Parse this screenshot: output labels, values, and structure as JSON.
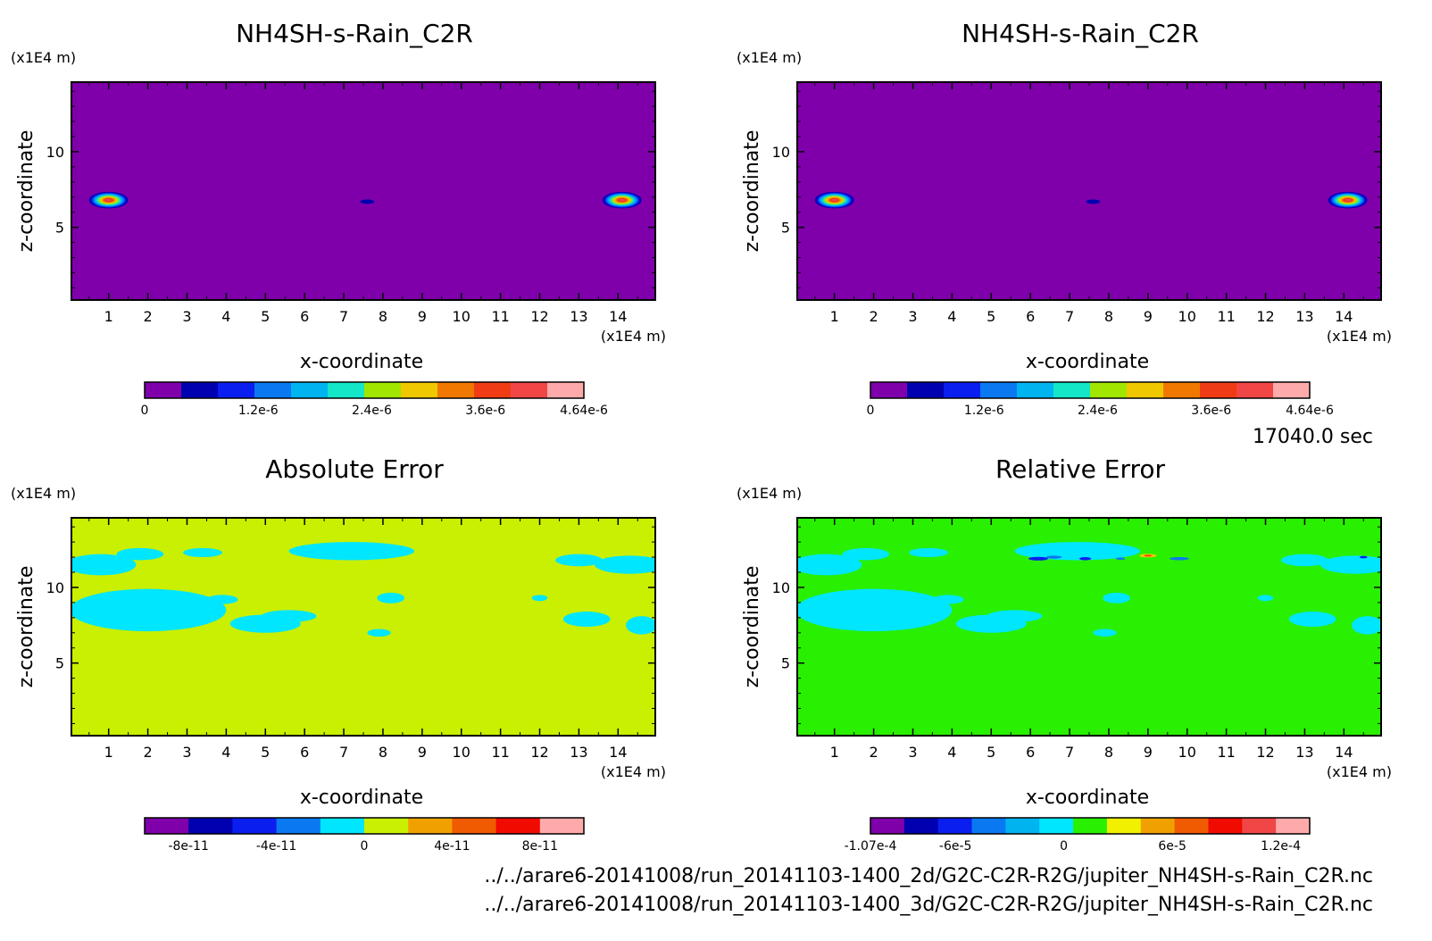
{
  "chart_data": [
    {
      "type": "heatmap",
      "title": "NH4SH-s-Rain_C2R",
      "xlabel": "x-coordinate",
      "ylabel": "z-coordinate",
      "x_unit": "(x1E4 m)",
      "y_unit": "(x1E4 m)",
      "xlim": [
        0.05,
        14.95
      ],
      "ylim": [
        0.2,
        14.6
      ],
      "x_ticks": [
        1,
        2,
        3,
        4,
        5,
        6,
        7,
        8,
        9,
        10,
        11,
        12,
        13,
        14
      ],
      "y_ticks": [
        5,
        10
      ],
      "background_color": "#7f00aa",
      "blobs": [
        {
          "x": 1.0,
          "z": 6.8,
          "rx": 0.5,
          "rz": 0.55,
          "level": 0.95
        },
        {
          "x": 14.1,
          "z": 6.8,
          "rx": 0.5,
          "rz": 0.55,
          "level": 0.95
        },
        {
          "x": 7.6,
          "z": 6.7,
          "rx": 0.18,
          "rz": 0.15,
          "level": 0.12
        }
      ],
      "colorbar": {
        "colors": [
          "#7f00aa",
          "#0000b0",
          "#0a1ef0",
          "#0a78f0",
          "#00b4f0",
          "#14e6c8",
          "#a0e600",
          "#f0c800",
          "#f07800",
          "#f03c14",
          "#f04646",
          "#ffaaaa"
        ],
        "tick_labels": [
          "0",
          "1.2e-6",
          "2.4e-6",
          "3.6e-6",
          "4.64e-6"
        ],
        "tick_values": [
          0,
          1.2e-06,
          2.4e-06,
          3.6e-06,
          4.64e-06
        ],
        "range": [
          0,
          4.64e-06
        ]
      }
    },
    {
      "type": "heatmap",
      "title": "NH4SH-s-Rain_C2R",
      "xlabel": "x-coordinate",
      "ylabel": "z-coordinate",
      "x_unit": "(x1E4 m)",
      "y_unit": "(x1E4 m)",
      "xlim": [
        0.05,
        14.95
      ],
      "ylim": [
        0.2,
        14.6
      ],
      "x_ticks": [
        1,
        2,
        3,
        4,
        5,
        6,
        7,
        8,
        9,
        10,
        11,
        12,
        13,
        14
      ],
      "y_ticks": [
        5,
        10
      ],
      "background_color": "#7f00aa",
      "blobs": [
        {
          "x": 1.0,
          "z": 6.8,
          "rx": 0.5,
          "rz": 0.55,
          "level": 0.95
        },
        {
          "x": 14.1,
          "z": 6.8,
          "rx": 0.5,
          "rz": 0.55,
          "level": 0.95
        },
        {
          "x": 7.6,
          "z": 6.7,
          "rx": 0.18,
          "rz": 0.15,
          "level": 0.12
        }
      ],
      "colorbar": {
        "colors": [
          "#7f00aa",
          "#0000b0",
          "#0a1ef0",
          "#0a78f0",
          "#00b4f0",
          "#14e6c8",
          "#a0e600",
          "#f0c800",
          "#f07800",
          "#f03c14",
          "#f04646",
          "#ffaaaa"
        ],
        "tick_labels": [
          "0",
          "1.2e-6",
          "2.4e-6",
          "3.6e-6",
          "4.64e-6"
        ],
        "tick_values": [
          0,
          1.2e-06,
          2.4e-06,
          3.6e-06,
          4.64e-06
        ],
        "range": [
          0,
          4.64e-06
        ]
      }
    },
    {
      "type": "heatmap",
      "title": "Absolute Error",
      "xlabel": "x-coordinate",
      "ylabel": "z-coordinate",
      "x_unit": "(x1E4 m)",
      "y_unit": "(x1E4 m)",
      "xlim": [
        0.05,
        14.95
      ],
      "ylim": [
        0.2,
        14.6
      ],
      "x_ticks": [
        1,
        2,
        3,
        4,
        5,
        6,
        7,
        8,
        9,
        10,
        11,
        12,
        13,
        14
      ],
      "y_ticks": [
        5,
        10
      ],
      "background_color": "#c8f000",
      "patch_color": "#00e6ff",
      "patches": [
        {
          "x": 2.0,
          "z": 8.5,
          "rx": 2.0,
          "rz": 1.4
        },
        {
          "x": 0.8,
          "z": 11.5,
          "rx": 0.9,
          "rz": 0.7
        },
        {
          "x": 1.8,
          "z": 12.2,
          "rx": 0.6,
          "rz": 0.4
        },
        {
          "x": 3.4,
          "z": 12.3,
          "rx": 0.5,
          "rz": 0.3
        },
        {
          "x": 3.9,
          "z": 9.2,
          "rx": 0.4,
          "rz": 0.3
        },
        {
          "x": 5.0,
          "z": 7.6,
          "rx": 0.9,
          "rz": 0.6
        },
        {
          "x": 5.6,
          "z": 8.1,
          "rx": 0.7,
          "rz": 0.4
        },
        {
          "x": 7.2,
          "z": 12.4,
          "rx": 1.6,
          "rz": 0.6
        },
        {
          "x": 8.2,
          "z": 9.3,
          "rx": 0.35,
          "rz": 0.35
        },
        {
          "x": 7.9,
          "z": 7.0,
          "rx": 0.3,
          "rz": 0.25
        },
        {
          "x": 12.0,
          "z": 9.3,
          "rx": 0.2,
          "rz": 0.2
        },
        {
          "x": 13.2,
          "z": 7.9,
          "rx": 0.6,
          "rz": 0.5
        },
        {
          "x": 14.3,
          "z": 11.5,
          "rx": 0.9,
          "rz": 0.6
        },
        {
          "x": 13.0,
          "z": 11.8,
          "rx": 0.6,
          "rz": 0.4
        },
        {
          "x": 14.6,
          "z": 7.5,
          "rx": 0.4,
          "rz": 0.6
        }
      ],
      "colorbar": {
        "colors": [
          "#7f00aa",
          "#0000b0",
          "#0a1ef0",
          "#0a78f0",
          "#00e6ff",
          "#c8f000",
          "#f0a000",
          "#f05a00",
          "#f00a00",
          "#ffaaaa"
        ],
        "tick_labels": [
          "-8e-11",
          "-4e-11",
          "0",
          "4e-11",
          "8e-11"
        ],
        "tick_values": [
          -8e-11,
          -4e-11,
          0,
          4e-11,
          8e-11
        ],
        "range": [
          -1e-10,
          1e-10
        ]
      }
    },
    {
      "type": "heatmap",
      "title": "Relative Error",
      "xlabel": "x-coordinate",
      "ylabel": "z-coordinate",
      "x_unit": "(x1E4 m)",
      "y_unit": "(x1E4 m)",
      "xlim": [
        0.05,
        14.95
      ],
      "ylim": [
        0.2,
        14.6
      ],
      "x_ticks": [
        1,
        2,
        3,
        4,
        5,
        6,
        7,
        8,
        9,
        10,
        11,
        12,
        13,
        14
      ],
      "y_ticks": [
        5,
        10
      ],
      "background_color": "#28f000",
      "patch_color": "#00e6ff",
      "patches": [
        {
          "x": 2.0,
          "z": 8.5,
          "rx": 2.0,
          "rz": 1.4
        },
        {
          "x": 0.8,
          "z": 11.5,
          "rx": 0.9,
          "rz": 0.7
        },
        {
          "x": 1.8,
          "z": 12.2,
          "rx": 0.6,
          "rz": 0.4
        },
        {
          "x": 3.4,
          "z": 12.3,
          "rx": 0.5,
          "rz": 0.3
        },
        {
          "x": 3.9,
          "z": 9.2,
          "rx": 0.4,
          "rz": 0.3
        },
        {
          "x": 5.0,
          "z": 7.6,
          "rx": 0.9,
          "rz": 0.6
        },
        {
          "x": 5.6,
          "z": 8.1,
          "rx": 0.7,
          "rz": 0.4
        },
        {
          "x": 7.2,
          "z": 12.4,
          "rx": 1.6,
          "rz": 0.6
        },
        {
          "x": 8.2,
          "z": 9.3,
          "rx": 0.35,
          "rz": 0.35
        },
        {
          "x": 7.9,
          "z": 7.0,
          "rx": 0.3,
          "rz": 0.25
        },
        {
          "x": 12.0,
          "z": 9.3,
          "rx": 0.2,
          "rz": 0.2
        },
        {
          "x": 13.2,
          "z": 7.9,
          "rx": 0.6,
          "rz": 0.5
        },
        {
          "x": 14.3,
          "z": 11.5,
          "rx": 0.9,
          "rz": 0.6
        },
        {
          "x": 13.0,
          "z": 11.8,
          "rx": 0.6,
          "rz": 0.4
        },
        {
          "x": 14.6,
          "z": 7.5,
          "rx": 0.4,
          "rz": 0.6
        }
      ],
      "extremes": [
        {
          "x": 6.2,
          "z": 11.9,
          "rx": 0.25,
          "rz": 0.12,
          "color": "#0a1ef0"
        },
        {
          "x": 6.6,
          "z": 12.0,
          "rx": 0.2,
          "rz": 0.1,
          "color": "#0a78f0"
        },
        {
          "x": 7.4,
          "z": 11.9,
          "rx": 0.15,
          "rz": 0.1,
          "color": "#0a1ef0"
        },
        {
          "x": 9.0,
          "z": 12.1,
          "rx": 0.22,
          "rz": 0.12,
          "color": "#f0c800"
        },
        {
          "x": 9.0,
          "z": 12.1,
          "rx": 0.1,
          "rz": 0.06,
          "color": "#f03c14"
        },
        {
          "x": 8.3,
          "z": 11.9,
          "rx": 0.12,
          "rz": 0.08,
          "color": "#0a78f0"
        },
        {
          "x": 9.8,
          "z": 11.9,
          "rx": 0.25,
          "rz": 0.1,
          "color": "#0a78f0"
        },
        {
          "x": 14.5,
          "z": 12.0,
          "rx": 0.1,
          "rz": 0.08,
          "color": "#0a1ef0"
        }
      ],
      "colorbar": {
        "colors": [
          "#7f00aa",
          "#0000b0",
          "#0a1ef0",
          "#0a78f0",
          "#00b4f0",
          "#00e6ff",
          "#28f000",
          "#f0f000",
          "#f0a000",
          "#f05a00",
          "#f00a00",
          "#f04646",
          "#ffaaaa"
        ],
        "tick_labels": [
          "-1.07e-4",
          "-6e-5",
          "0",
          "6e-5",
          "1.2e-4"
        ],
        "tick_values": [
          -0.000107,
          -6e-05,
          0,
          6e-05,
          0.00012
        ],
        "range": [
          -0.000107,
          0.000136
        ]
      }
    }
  ],
  "time_label": "17040.0 sec",
  "file_paths": [
    "../../arare6-20141008/run_20141103-1400_2d/G2C-C2R-R2G/jupiter_NH4SH-s-Rain_C2R.nc",
    "../../arare6-20141008/run_20141103-1400_3d/G2C-C2R-R2G/jupiter_NH4SH-s-Rain_C2R.nc"
  ]
}
